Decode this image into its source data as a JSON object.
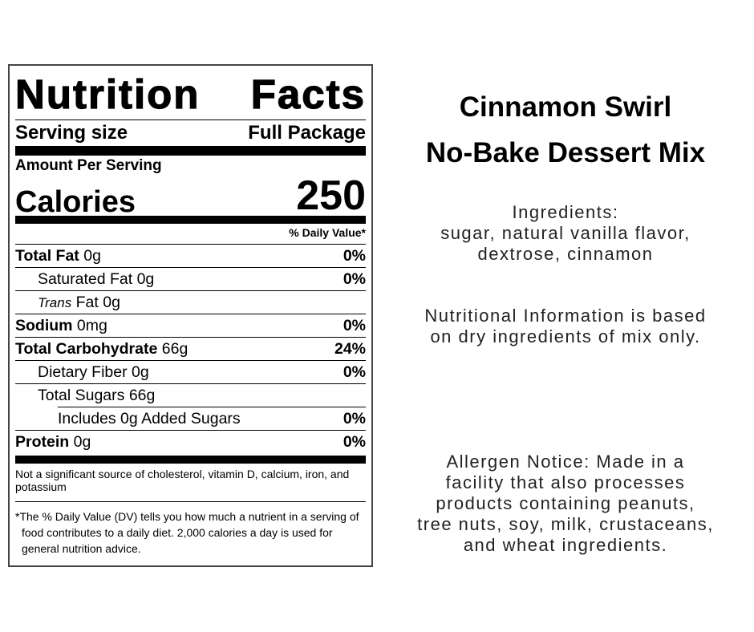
{
  "label": {
    "title": "Nutrition Facts",
    "serving_size_label": "Serving size",
    "serving_size_value": "Full Package",
    "amount_per_serving": "Amount Per Serving",
    "calories_label": "Calories",
    "calories_value": "250",
    "daily_value_header": "% Daily Value*",
    "rows": [
      {
        "name": "Total Fat",
        "amount": "0g",
        "dv": "0%"
      },
      {
        "name": "Saturated Fat",
        "amount": "0g",
        "dv": "0%"
      },
      {
        "italic": "Trans",
        "name": "Fat",
        "amount": "0g"
      },
      {
        "name": "Sodium",
        "amount": "0mg",
        "dv": "0%"
      },
      {
        "name": "Total Carbohydrate",
        "amount": "66g",
        "dv": "24%"
      },
      {
        "name": "Dietary Fiber",
        "amount": "0g",
        "dv": "0%"
      },
      {
        "name": "Total Sugars",
        "amount": "66g"
      },
      {
        "name": "Includes 0g Added Sugars",
        "dv": "0%"
      },
      {
        "name": "Protein",
        "amount": "0g",
        "dv": "0%"
      }
    ],
    "note": "Not a significant source of cholesterol, vitamin D, calcium, iron, and potassium",
    "footnote": "*The % Daily Value (DV) tells you how much a nutrient in a serving of food contributes to a daily diet. 2,000 calories a day is used for general nutrition advice."
  },
  "product": {
    "title": [
      "Cinnamon Swirl",
      "No-Bake Dessert Mix"
    ],
    "ingredients_heading": "Ingredients:",
    "ingredients": [
      "sugar, natural vanilla flavor,",
      "dextrose, cinnamon"
    ],
    "nutrition_note": [
      "Nutritional Information is based",
      "on dry ingredients of mix only."
    ],
    "allergen_notice": [
      "Allergen Notice: Made in a",
      "facility that also processes",
      "products containing peanuts,",
      "tree nuts, soy, milk, crustaceans,",
      "and wheat ingredients."
    ]
  }
}
